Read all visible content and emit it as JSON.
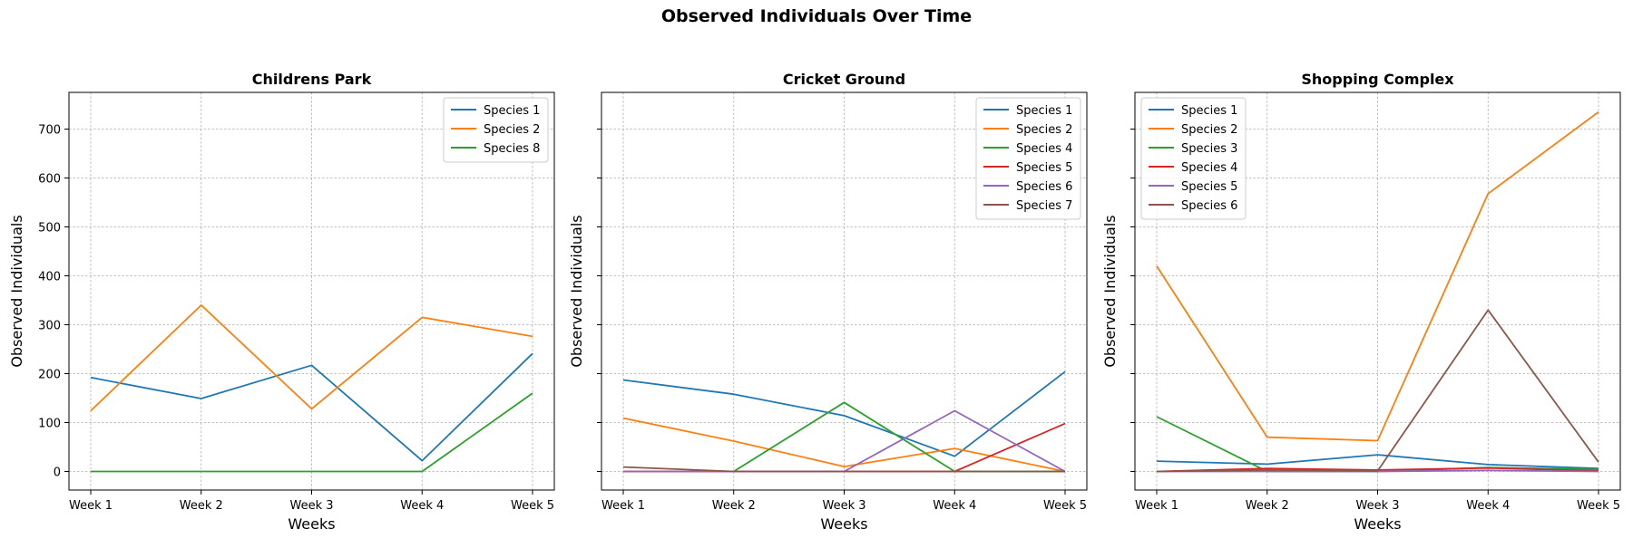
{
  "figure": {
    "title": "Observed Individuals Over Time"
  },
  "chart_data": [
    {
      "type": "line",
      "title": "Childrens Park",
      "xlabel": "Weeks",
      "ylabel": "Observed Individuals",
      "categories": [
        "Week 1",
        "Week 2",
        "Week 3",
        "Week 4",
        "Week 5"
      ],
      "ylim": [
        -38,
        775
      ],
      "yticks": [
        0,
        100,
        200,
        300,
        400,
        500,
        600,
        700
      ],
      "grid": true,
      "legend_position": "upper right",
      "series": [
        {
          "name": "Species 1",
          "color": "#1f77b4",
          "values": [
            192,
            149,
            217,
            22,
            241
          ]
        },
        {
          "name": "Species 2",
          "color": "#ff7f0e",
          "values": [
            124,
            340,
            128,
            315,
            276
          ]
        },
        {
          "name": "Species 8",
          "color": "#2ca02c",
          "values": [
            0,
            0,
            0,
            0,
            160
          ]
        }
      ]
    },
    {
      "type": "line",
      "title": "Cricket Ground",
      "xlabel": "Weeks",
      "ylabel": "Observed Individuals",
      "categories": [
        "Week 1",
        "Week 2",
        "Week 3",
        "Week 4",
        "Week 5"
      ],
      "ylim": [
        -38,
        775
      ],
      "yticks": [
        0,
        100,
        200,
        300,
        400,
        500,
        600,
        700
      ],
      "grid": true,
      "legend_position": "upper right",
      "series": [
        {
          "name": "Species 1",
          "color": "#1f77b4",
          "values": [
            187,
            158,
            114,
            31,
            204
          ]
        },
        {
          "name": "Species 2",
          "color": "#ff7f0e",
          "values": [
            109,
            62,
            10,
            47,
            0
          ]
        },
        {
          "name": "Species 4",
          "color": "#2ca02c",
          "values": [
            0,
            0,
            141,
            0,
            0
          ]
        },
        {
          "name": "Species 5",
          "color": "#d62728",
          "values": [
            0,
            0,
            0,
            0,
            98
          ]
        },
        {
          "name": "Species 6",
          "color": "#9467bd",
          "values": [
            0,
            0,
            0,
            124,
            0
          ]
        },
        {
          "name": "Species 7",
          "color": "#8c564b",
          "values": [
            9,
            0,
            0,
            0,
            0
          ]
        }
      ]
    },
    {
      "type": "line",
      "title": "Shopping Complex",
      "xlabel": "Weeks",
      "ylabel": "Observed Individuals",
      "categories": [
        "Week 1",
        "Week 2",
        "Week 3",
        "Week 4",
        "Week 5"
      ],
      "ylim": [
        -38,
        775
      ],
      "yticks": [
        0,
        100,
        200,
        300,
        400,
        500,
        600,
        700
      ],
      "grid": true,
      "legend_position": "upper left",
      "series": [
        {
          "name": "Species 1",
          "color": "#1f77b4",
          "values": [
            21,
            15,
            34,
            14,
            6
          ]
        },
        {
          "name": "Species 2",
          "color": "#ff7f0e",
          "values": [
            420,
            70,
            63,
            568,
            735
          ]
        },
        {
          "name": "Species 3",
          "color": "#2ca02c",
          "values": [
            112,
            0,
            0,
            8,
            4
          ]
        },
        {
          "name": "Species 4",
          "color": "#d62728",
          "values": [
            0,
            6,
            3,
            7,
            1
          ]
        },
        {
          "name": "Species 5",
          "color": "#9467bd",
          "values": [
            0,
            0,
            0,
            2,
            0
          ]
        },
        {
          "name": "Species 6",
          "color": "#8c564b",
          "values": [
            0,
            3,
            1,
            330,
            19
          ]
        }
      ]
    }
  ]
}
